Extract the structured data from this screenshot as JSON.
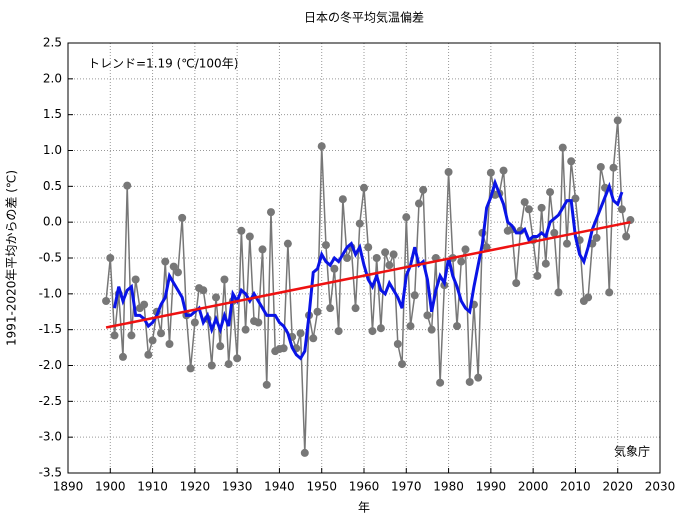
{
  "chart_data": {
    "type": "line",
    "title": "日本の冬平均気温偏差",
    "xlabel": "年",
    "ylabel": "1991-2020年平均からの差 (℃)",
    "annotations": [
      "トレンド=1.19 (℃/100年)",
      "気象庁"
    ],
    "x": [
      1899,
      1900,
      1901,
      1902,
      1903,
      1904,
      1905,
      1906,
      1907,
      1908,
      1909,
      1910,
      1911,
      1912,
      1913,
      1914,
      1915,
      1916,
      1917,
      1918,
      1919,
      1920,
      1921,
      1922,
      1923,
      1924,
      1925,
      1926,
      1927,
      1928,
      1929,
      1930,
      1931,
      1932,
      1933,
      1934,
      1935,
      1936,
      1937,
      1938,
      1939,
      1940,
      1941,
      1942,
      1943,
      1944,
      1945,
      1946,
      1947,
      1948,
      1949,
      1950,
      1951,
      1952,
      1953,
      1954,
      1955,
      1956,
      1957,
      1958,
      1959,
      1960,
      1961,
      1962,
      1963,
      1964,
      1965,
      1966,
      1967,
      1968,
      1969,
      1970,
      1971,
      1972,
      1973,
      1974,
      1975,
      1976,
      1977,
      1978,
      1979,
      1980,
      1981,
      1982,
      1983,
      1984,
      1985,
      1986,
      1987,
      1988,
      1989,
      1990,
      1991,
      1992,
      1993,
      1994,
      1995,
      1996,
      1997,
      1998,
      1999,
      2000,
      2001,
      2002,
      2003,
      2004,
      2005,
      2006,
      2007,
      2008,
      2009,
      2010,
      2011,
      2012,
      2013,
      2014,
      2015,
      2016,
      2017,
      2018,
      2019,
      2020,
      2021,
      2022,
      2023
    ],
    "series": [
      {
        "color": "#777777",
        "markers": true,
        "values": [
          -1.1,
          -0.5,
          -1.58,
          -1.0,
          -1.88,
          0.51,
          -1.58,
          -0.8,
          -1.2,
          -1.15,
          -1.85,
          -1.65,
          -1.25,
          -1.55,
          -0.55,
          -1.7,
          -0.62,
          -0.7,
          0.06,
          -1.3,
          -2.04,
          -1.4,
          -0.92,
          -0.95,
          -1.35,
          -2.0,
          -1.05,
          -1.73,
          -0.8,
          -1.98,
          -1.1,
          -1.9,
          -0.12,
          -1.5,
          -0.2,
          -1.38,
          -1.4,
          -0.38,
          -2.27,
          0.14,
          -1.8,
          -1.77,
          -1.76,
          -0.3,
          -1.6,
          -1.76,
          -1.55,
          -3.22,
          -1.3,
          -1.62,
          -1.25,
          1.06,
          -0.32,
          -1.2,
          -0.65,
          -1.52,
          0.32,
          -0.5,
          -0.35,
          -1.2,
          -0.02,
          0.48,
          -0.35,
          -1.52,
          -0.5,
          -1.48,
          -0.42,
          -0.6,
          -0.45,
          -1.7,
          -1.98,
          0.07,
          -1.45,
          -1.02,
          0.26,
          0.45,
          -1.3,
          -1.5,
          -0.5,
          -2.24,
          -0.88,
          0.7,
          -0.5,
          -1.45,
          -0.55,
          -0.38,
          -2.23,
          -1.15,
          -2.17,
          -0.15,
          -0.35,
          0.69,
          0.38,
          0.4,
          0.72,
          -0.12,
          -0.1,
          -0.85,
          -0.12,
          0.28,
          0.18,
          -0.25,
          -0.75,
          0.2,
          -0.58,
          0.42,
          -0.15,
          -0.98,
          1.04,
          -0.3,
          0.85,
          0.33,
          -0.25,
          -1.1,
          -1.05,
          -0.3,
          -0.22,
          0.77,
          0.48,
          -0.98,
          0.76,
          1.42,
          0.18,
          -0.2,
          0.03
        ]
      },
      {
        "color": "#0a14e6",
        "markers": false,
        "values": [
          null,
          null,
          -1.2,
          -0.9,
          -1.1,
          -0.95,
          -0.9,
          -1.3,
          -1.3,
          -1.35,
          -1.45,
          -1.4,
          -1.3,
          -1.15,
          -1.05,
          -0.75,
          -0.85,
          -0.95,
          -1.05,
          -1.3,
          -1.3,
          -1.25,
          -1.2,
          -1.4,
          -1.3,
          -1.5,
          -1.35,
          -1.5,
          -1.3,
          -1.45,
          -1.0,
          -1.1,
          -0.95,
          -1.0,
          -1.1,
          -1.0,
          -1.1,
          -1.2,
          -1.3,
          -1.3,
          -1.3,
          -1.4,
          -1.45,
          -1.55,
          -1.75,
          -1.85,
          -1.9,
          -1.8,
          -1.3,
          -0.7,
          -0.65,
          -0.45,
          -0.55,
          -0.6,
          -0.5,
          -0.55,
          -0.45,
          -0.35,
          -0.3,
          -0.45,
          -0.35,
          -0.6,
          -0.8,
          -0.9,
          -0.75,
          -0.95,
          -1.0,
          -0.85,
          -0.95,
          -1.05,
          -1.2,
          -0.75,
          -0.6,
          -0.35,
          -0.6,
          -0.55,
          -0.8,
          -1.25,
          -0.95,
          -0.75,
          -0.85,
          -0.5,
          -0.75,
          -0.9,
          -1.1,
          -1.2,
          -1.25,
          -0.9,
          -0.6,
          -0.3,
          0.2,
          0.35,
          0.55,
          0.4,
          0.25,
          0.0,
          -0.05,
          -0.15,
          -0.15,
          -0.1,
          -0.25,
          -0.2,
          -0.2,
          -0.15,
          -0.2,
          0.0,
          0.05,
          0.1,
          0.2,
          0.3,
          0.3,
          -0.2,
          -0.45,
          -0.55,
          -0.35,
          -0.1,
          0.05,
          0.2,
          0.35,
          0.5,
          0.3,
          0.25,
          0.42,
          null,
          null
        ]
      }
    ],
    "trend": {
      "color": "#ee1111",
      "x": [
        1899,
        2023
      ],
      "values": [
        -1.47,
        0.0
      ]
    },
    "xlim": [
      1890,
      2030
    ],
    "xticks": [
      1890,
      1900,
      1910,
      1920,
      1930,
      1940,
      1950,
      1960,
      1970,
      1980,
      1990,
      2000,
      2010,
      2020,
      2030
    ],
    "ylim": [
      -3.5,
      2.5
    ],
    "yticks": [
      {
        "value": 2.5,
        "label": "2.5"
      },
      {
        "value": 2,
        "label": "2.0"
      },
      {
        "value": 1.5,
        "label": "1.5"
      },
      {
        "value": 1,
        "label": "1.0"
      },
      {
        "value": 0.5,
        "label": "0.5"
      },
      {
        "value": 0,
        "label": "0.0"
      },
      {
        "value": -0.5,
        "label": "-0.5"
      },
      {
        "value": -1,
        "label": "-1.0"
      },
      {
        "value": -1.5,
        "label": "-1.5"
      },
      {
        "value": -2,
        "label": "-2.0"
      },
      {
        "value": -2.5,
        "label": "-2.5"
      },
      {
        "value": -3,
        "label": "-3.0"
      },
      {
        "value": -3.5,
        "label": "-3.5"
      }
    ],
    "grid": true
  }
}
